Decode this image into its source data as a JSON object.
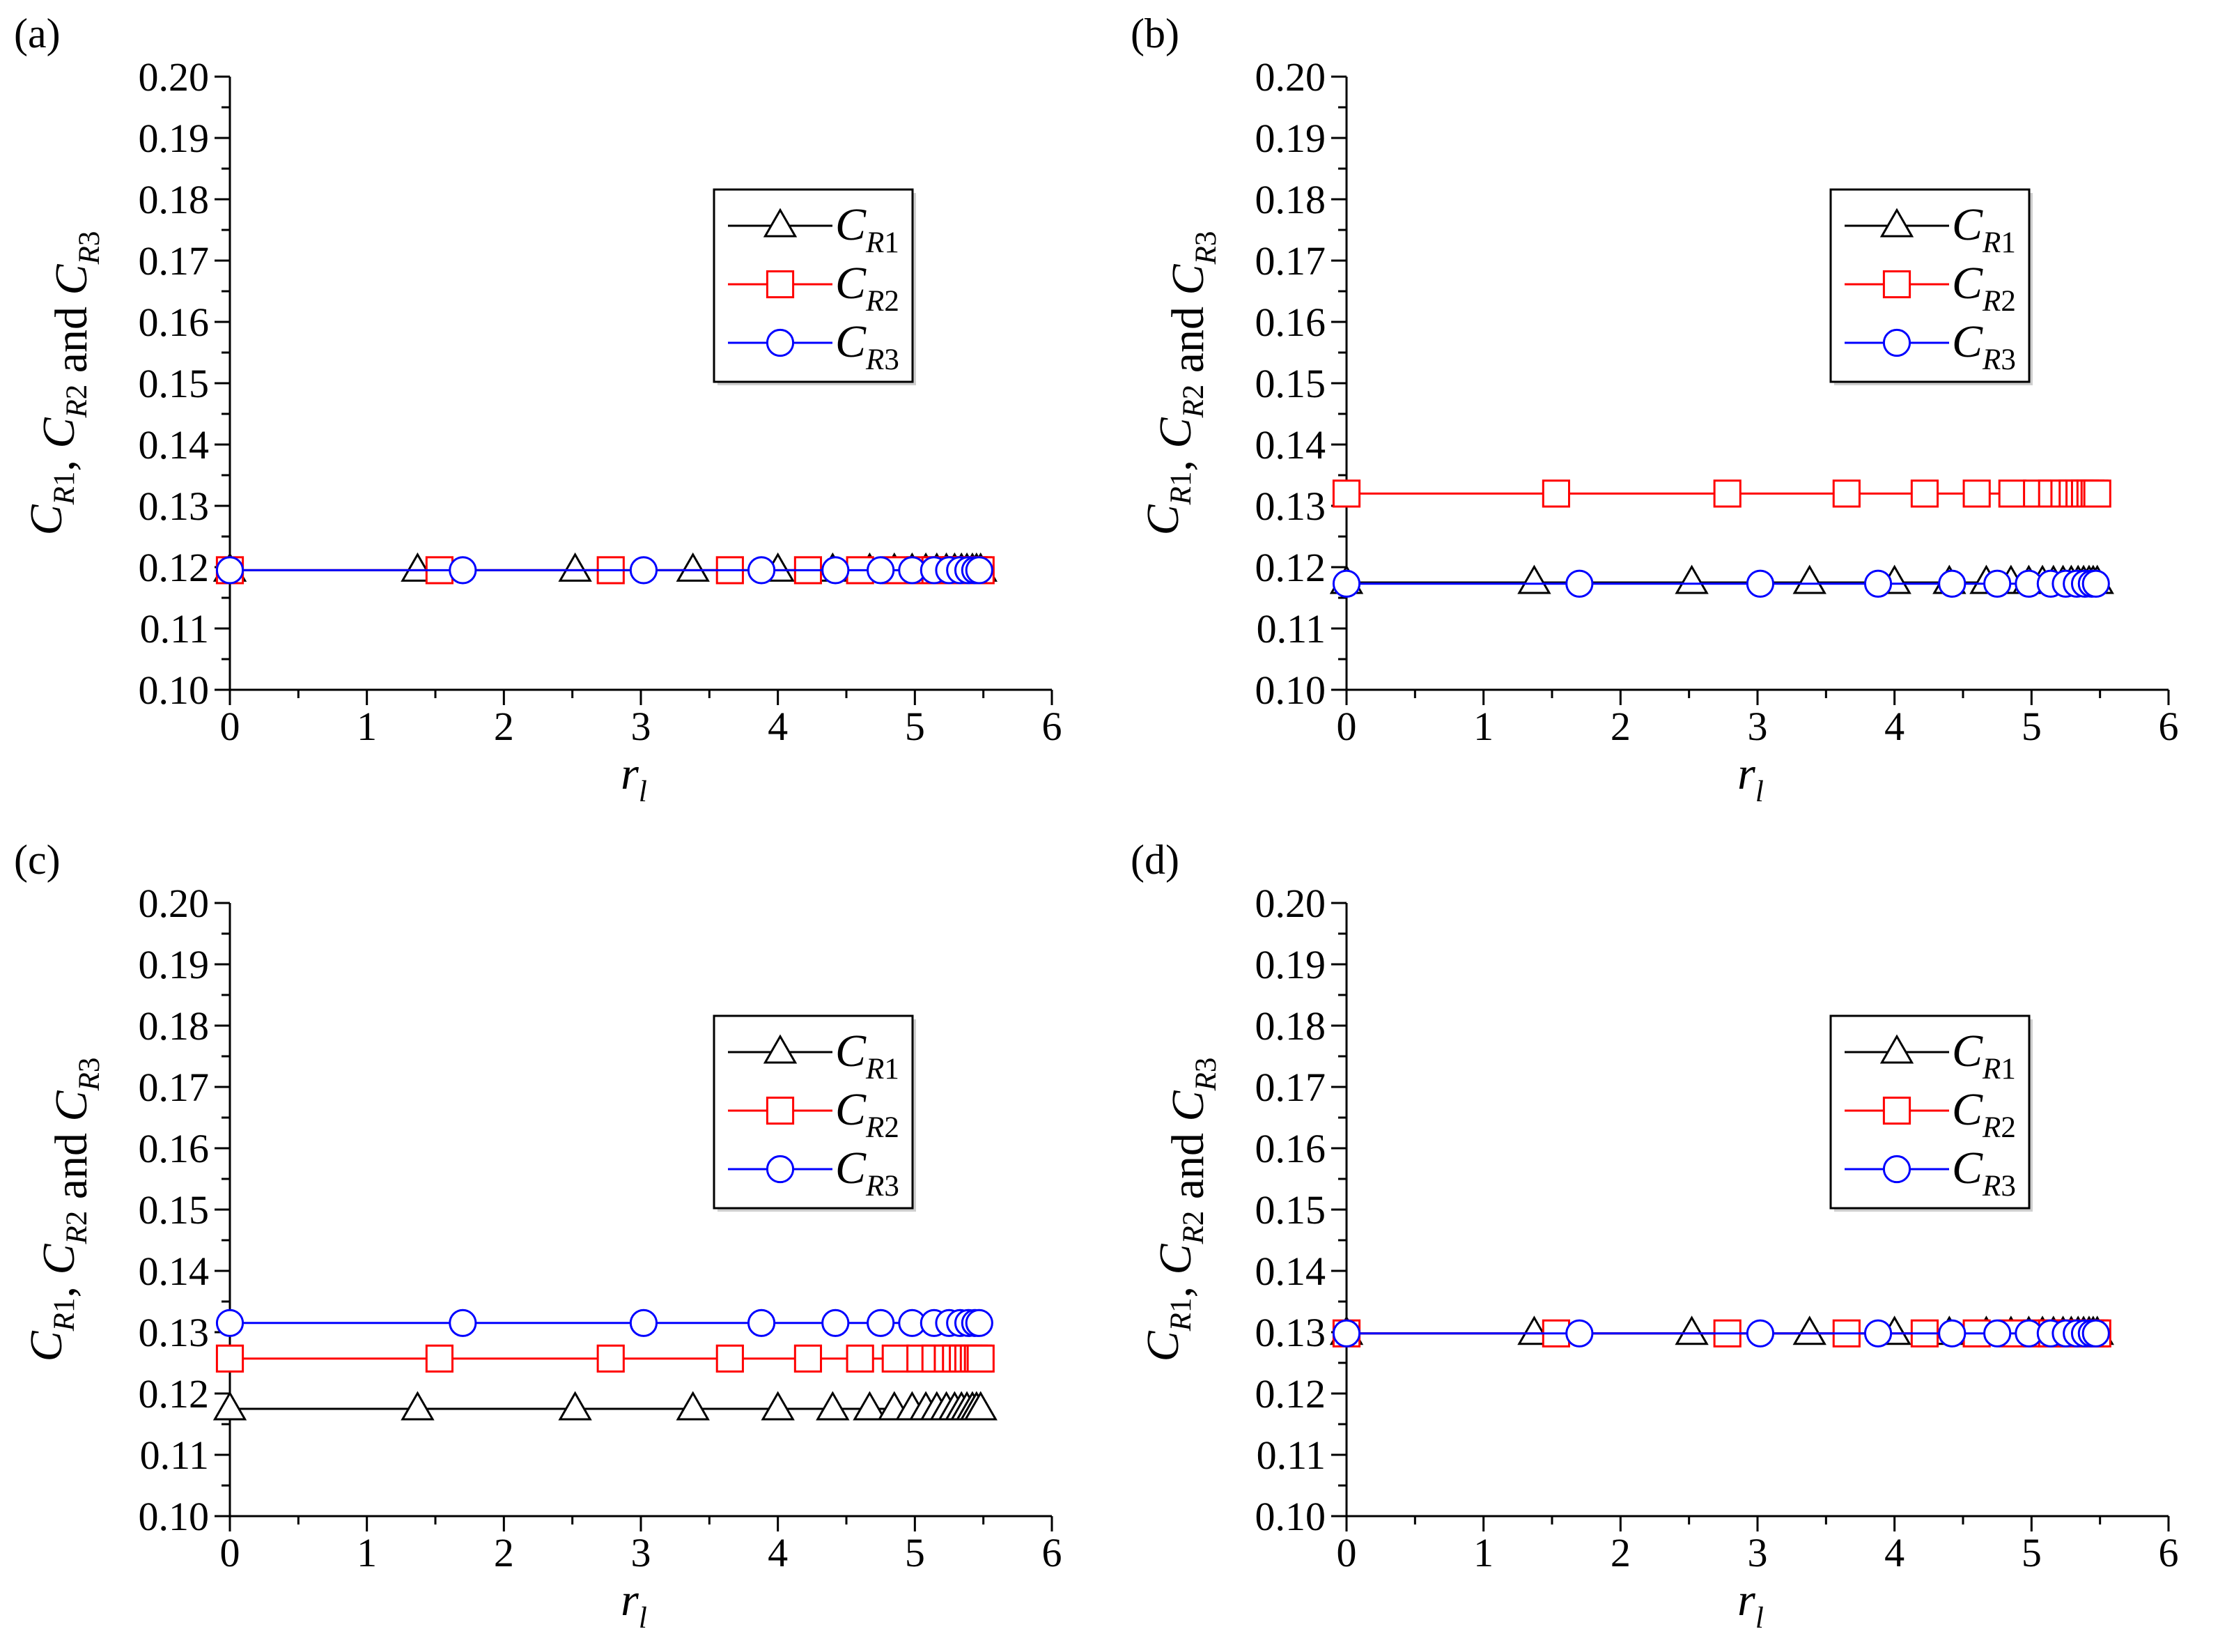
{
  "chart_data": [
    {
      "panel": "(a)",
      "type": "line",
      "xlabel": "r_l",
      "ylabel": "C_R1, C_R2 and C_R3",
      "xlim": [
        0,
        6
      ],
      "ylim": [
        0.1,
        0.2
      ],
      "xticks": [
        0,
        1,
        2,
        3,
        4,
        5,
        6
      ],
      "yticks": [
        "0.10",
        "0.11",
        "0.12",
        "0.13",
        "0.14",
        "0.15",
        "0.16",
        "0.17",
        "0.18",
        "0.19",
        "0.20"
      ],
      "legend": {
        "position": "upper-center-right",
        "entries": [
          "C_R1",
          "C_R2",
          "C_R3"
        ]
      },
      "series": [
        {
          "name": "C_R1",
          "color": "#000000",
          "marker": "triangle",
          "x": [
            0,
            1.37,
            2.52,
            3.38,
            4.0,
            4.4,
            4.67,
            4.85,
            4.98,
            5.08,
            5.16,
            5.23,
            5.29,
            5.34,
            5.38,
            5.42,
            5.45,
            5.48
          ],
          "y": [
            0.1195,
            0.1195,
            0.1195,
            0.1195,
            0.1195,
            0.1195,
            0.1195,
            0.1195,
            0.1195,
            0.1195,
            0.1195,
            0.1195,
            0.1195,
            0.1195,
            0.1195,
            0.1195,
            0.1195,
            0.1195
          ]
        },
        {
          "name": "C_R2",
          "color": "#ff0000",
          "marker": "square",
          "x": [
            0,
            1.53,
            2.78,
            3.65,
            4.22,
            4.6,
            4.86,
            5.04,
            5.15,
            5.24,
            5.3,
            5.35,
            5.39,
            5.43,
            5.46,
            5.48
          ],
          "y": [
            0.1195,
            0.1195,
            0.1195,
            0.1195,
            0.1195,
            0.1195,
            0.1195,
            0.1195,
            0.1195,
            0.1195,
            0.1195,
            0.1195,
            0.1195,
            0.1195,
            0.1195,
            0.1195
          ]
        },
        {
          "name": "C_R3",
          "color": "#0000ff",
          "marker": "circle",
          "x": [
            0,
            1.7,
            3.02,
            3.88,
            4.42,
            4.75,
            4.98,
            5.14,
            5.25,
            5.33,
            5.39,
            5.44,
            5.47
          ],
          "y": [
            0.1195,
            0.1195,
            0.1195,
            0.1195,
            0.1195,
            0.1195,
            0.1195,
            0.1195,
            0.1195,
            0.1195,
            0.1195,
            0.1195,
            0.1195
          ]
        }
      ]
    },
    {
      "panel": "(b)",
      "type": "line",
      "xlabel": "r_l",
      "ylabel": "C_R1, C_R2 and C_R3",
      "xlim": [
        0,
        6
      ],
      "ylim": [
        0.1,
        0.2
      ],
      "xticks": [
        0,
        1,
        2,
        3,
        4,
        5,
        6
      ],
      "yticks": [
        "0.10",
        "0.11",
        "0.12",
        "0.13",
        "0.14",
        "0.15",
        "0.16",
        "0.17",
        "0.18",
        "0.19",
        "0.20"
      ],
      "legend": {
        "position": "upper-center-right",
        "entries": [
          "C_R1",
          "C_R2",
          "C_R3"
        ]
      },
      "series": [
        {
          "name": "C_R1",
          "color": "#000000",
          "marker": "triangle",
          "x": [
            0,
            1.37,
            2.52,
            3.38,
            4.0,
            4.4,
            4.67,
            4.85,
            4.98,
            5.08,
            5.16,
            5.23,
            5.29,
            5.34,
            5.38,
            5.42,
            5.45,
            5.48
          ],
          "y": [
            0.1175,
            0.1175,
            0.1175,
            0.1175,
            0.1175,
            0.1175,
            0.1175,
            0.1175,
            0.1175,
            0.1175,
            0.1175,
            0.1175,
            0.1175,
            0.1175,
            0.1175,
            0.1175,
            0.1175,
            0.1175
          ]
        },
        {
          "name": "C_R2",
          "color": "#ff0000",
          "marker": "square",
          "x": [
            0,
            1.53,
            2.78,
            3.65,
            4.22,
            4.6,
            4.86,
            5.04,
            5.15,
            5.24,
            5.3,
            5.35,
            5.39,
            5.43,
            5.46,
            5.48
          ],
          "y": [
            0.132,
            0.132,
            0.132,
            0.132,
            0.132,
            0.132,
            0.132,
            0.132,
            0.132,
            0.132,
            0.132,
            0.132,
            0.132,
            0.132,
            0.132,
            0.132
          ]
        },
        {
          "name": "C_R3",
          "color": "#0000ff",
          "marker": "circle",
          "x": [
            0,
            1.7,
            3.02,
            3.88,
            4.42,
            4.75,
            4.98,
            5.14,
            5.25,
            5.33,
            5.39,
            5.44,
            5.47
          ],
          "y": [
            0.1173,
            0.1173,
            0.1173,
            0.1173,
            0.1173,
            0.1173,
            0.1173,
            0.1173,
            0.1173,
            0.1173,
            0.1173,
            0.1173,
            0.1173
          ]
        }
      ]
    },
    {
      "panel": "(c)",
      "type": "line",
      "xlabel": "r_l",
      "ylabel": "C_R1, C_R2 and C_R3",
      "xlim": [
        0,
        6
      ],
      "ylim": [
        0.1,
        0.2
      ],
      "xticks": [
        0,
        1,
        2,
        3,
        4,
        5,
        6
      ],
      "yticks": [
        "0.10",
        "0.11",
        "0.12",
        "0.13",
        "0.14",
        "0.15",
        "0.16",
        "0.17",
        "0.18",
        "0.19",
        "0.20"
      ],
      "legend": {
        "position": "upper-center-right",
        "entries": [
          "C_R1",
          "C_R2",
          "C_R3"
        ]
      },
      "series": [
        {
          "name": "C_R1",
          "color": "#000000",
          "marker": "triangle",
          "x": [
            0,
            1.37,
            2.52,
            3.38,
            4.0,
            4.4,
            4.67,
            4.85,
            4.98,
            5.08,
            5.16,
            5.23,
            5.29,
            5.34,
            5.38,
            5.42,
            5.45,
            5.48
          ],
          "y": [
            0.1175,
            0.1175,
            0.1175,
            0.1175,
            0.1175,
            0.1175,
            0.1175,
            0.1175,
            0.1175,
            0.1175,
            0.1175,
            0.1175,
            0.1175,
            0.1175,
            0.1175,
            0.1175,
            0.1175,
            0.1175
          ]
        },
        {
          "name": "C_R2",
          "color": "#ff0000",
          "marker": "square",
          "x": [
            0,
            1.53,
            2.78,
            3.65,
            4.22,
            4.6,
            4.86,
            5.04,
            5.15,
            5.24,
            5.3,
            5.35,
            5.39,
            5.43,
            5.46,
            5.48
          ],
          "y": [
            0.1257,
            0.1257,
            0.1257,
            0.1257,
            0.1257,
            0.1257,
            0.1257,
            0.1257,
            0.1257,
            0.1257,
            0.1257,
            0.1257,
            0.1257,
            0.1257,
            0.1257,
            0.1257
          ]
        },
        {
          "name": "C_R3",
          "color": "#0000ff",
          "marker": "circle",
          "x": [
            0,
            1.7,
            3.02,
            3.88,
            4.42,
            4.75,
            4.98,
            5.14,
            5.25,
            5.33,
            5.39,
            5.44,
            5.47
          ],
          "y": [
            0.1315,
            0.1315,
            0.1315,
            0.1315,
            0.1315,
            0.1315,
            0.1315,
            0.1315,
            0.1315,
            0.1315,
            0.1315,
            0.1315,
            0.1315
          ]
        }
      ]
    },
    {
      "panel": "(d)",
      "type": "line",
      "xlabel": "r_l",
      "ylabel": "C_R1, C_R2 and C_R3",
      "xlim": [
        0,
        6
      ],
      "ylim": [
        0.1,
        0.2
      ],
      "xticks": [
        0,
        1,
        2,
        3,
        4,
        5,
        6
      ],
      "yticks": [
        "0.10",
        "0.11",
        "0.12",
        "0.13",
        "0.14",
        "0.15",
        "0.16",
        "0.17",
        "0.18",
        "0.19",
        "0.20"
      ],
      "legend": {
        "position": "upper-center-right",
        "entries": [
          "C_R1",
          "C_R2",
          "C_R3"
        ]
      },
      "series": [
        {
          "name": "C_R1",
          "color": "#000000",
          "marker": "triangle",
          "x": [
            0,
            1.37,
            2.52,
            3.38,
            4.0,
            4.4,
            4.67,
            4.85,
            4.98,
            5.08,
            5.16,
            5.23,
            5.29,
            5.34,
            5.38,
            5.42,
            5.45,
            5.48
          ],
          "y": [
            0.1298,
            0.1298,
            0.1298,
            0.1298,
            0.1298,
            0.1298,
            0.1298,
            0.1298,
            0.1298,
            0.1298,
            0.1298,
            0.1298,
            0.1298,
            0.1298,
            0.1298,
            0.1298,
            0.1298,
            0.1298
          ]
        },
        {
          "name": "C_R2",
          "color": "#ff0000",
          "marker": "square",
          "x": [
            0,
            1.53,
            2.78,
            3.65,
            4.22,
            4.6,
            4.86,
            5.04,
            5.15,
            5.24,
            5.3,
            5.35,
            5.39,
            5.43,
            5.46,
            5.48
          ],
          "y": [
            0.1298,
            0.1298,
            0.1298,
            0.1298,
            0.1298,
            0.1298,
            0.1298,
            0.1298,
            0.1298,
            0.1298,
            0.1298,
            0.1298,
            0.1298,
            0.1298,
            0.1298,
            0.1298
          ]
        },
        {
          "name": "C_R3",
          "color": "#0000ff",
          "marker": "circle",
          "x": [
            0,
            1.7,
            3.02,
            3.88,
            4.42,
            4.75,
            4.98,
            5.14,
            5.25,
            5.33,
            5.39,
            5.44,
            5.47
          ],
          "y": [
            0.1298,
            0.1298,
            0.1298,
            0.1298,
            0.1298,
            0.1298,
            0.1298,
            0.1298,
            0.1298,
            0.1298,
            0.1298,
            0.1298,
            0.1298
          ]
        }
      ]
    }
  ]
}
